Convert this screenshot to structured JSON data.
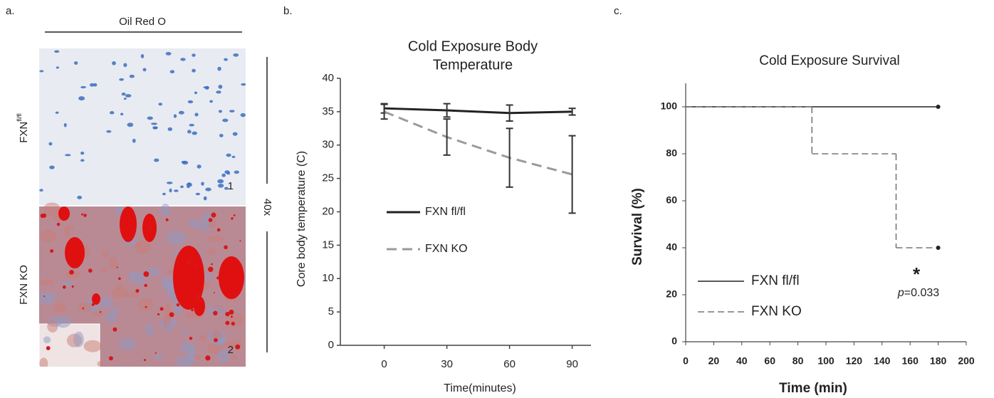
{
  "panel_a": {
    "label": "a.",
    "stain": "Oil Red O",
    "rows": [
      {
        "label": "FXN",
        "superscript": "fl/fl",
        "number": "1"
      },
      {
        "label": "FXN KO",
        "number": "2"
      }
    ],
    "magnification": "40x"
  },
  "chart_data": [
    {
      "type": "line",
      "panel_label": "b.",
      "title": [
        "Cold Exposure Body",
        "Temperature"
      ],
      "categories": [
        "0",
        "30",
        "60",
        "90"
      ],
      "series": [
        {
          "name": "FXN fl/fl",
          "color": "#222222",
          "dashed": false,
          "values": [
            35.5,
            35.2,
            34.8,
            35.0
          ],
          "errors": [
            0.7,
            1.0,
            1.2,
            0.5
          ]
        },
        {
          "name": "FXN KO",
          "color": "#9a9a9a",
          "dashed": true,
          "values": [
            35.0,
            31.2,
            28.1,
            25.6
          ],
          "errors": [
            1.1,
            2.7,
            4.4,
            5.8
          ]
        }
      ],
      "ylim": [
        0,
        40
      ],
      "yticks": [
        0,
        5,
        10,
        15,
        20,
        25,
        30,
        35,
        40
      ],
      "xlabel": "Time(minutes)",
      "ylabel": "Core body temperature (C)"
    },
    {
      "type": "step",
      "panel_label": "c.",
      "title": [
        "Cold Exposure Survival"
      ],
      "series": [
        {
          "name": "FXN fl/fl",
          "color": "#222222",
          "dashed": false,
          "x": [
            0,
            180
          ],
          "values": [
            100,
            100
          ]
        },
        {
          "name": "FXN KO",
          "color": "#777777",
          "dashed": true,
          "x": [
            0,
            90,
            150,
            180
          ],
          "values": [
            100,
            80,
            40,
            40
          ]
        }
      ],
      "xlim": [
        0,
        200
      ],
      "xticks": [
        0,
        20,
        40,
        60,
        80,
        100,
        120,
        140,
        160,
        180,
        200
      ],
      "ylim": [
        0,
        110
      ],
      "yticks": [
        0,
        20,
        40,
        60,
        80,
        100
      ],
      "xlabel": "Time (min)",
      "ylabel": "Survival (%)",
      "annotations": {
        "star": "*",
        "p_symbol": "p",
        "p_value": "=0.033"
      }
    }
  ]
}
